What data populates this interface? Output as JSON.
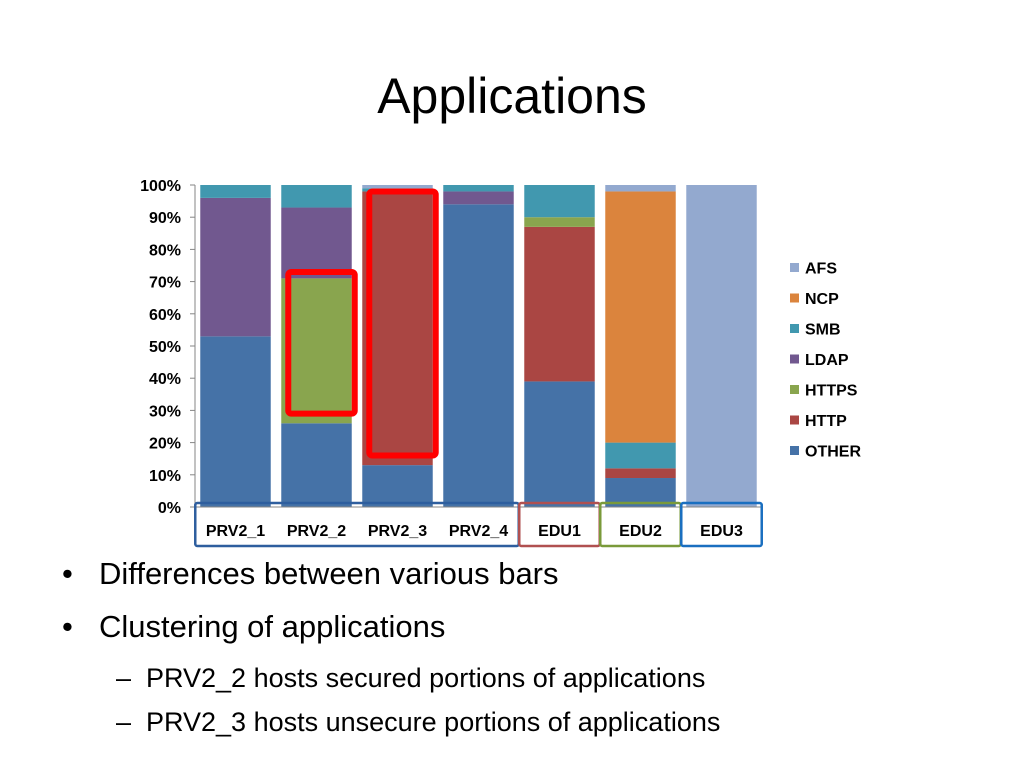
{
  "slide": {
    "title": "Applications"
  },
  "bullets": [
    {
      "text": "Differences between various bars"
    },
    {
      "text": "Clustering of applications"
    }
  ],
  "sub_bullets": [
    {
      "text": "PRV2_2 hosts secured portions of applications"
    },
    {
      "text": "PRV2_3 hosts unsecure portions of applications"
    }
  ],
  "markers": {
    "bullet": "•",
    "dash": "–"
  },
  "chart_data": {
    "type": "bar",
    "stacked": "percent",
    "title": "",
    "xlabel": "",
    "ylabel": "",
    "ylim": [
      0,
      100
    ],
    "y_ticks": [
      "0%",
      "10%",
      "20%",
      "30%",
      "40%",
      "50%",
      "60%",
      "70%",
      "80%",
      "90%",
      "100%"
    ],
    "grid": false,
    "legend": "right",
    "categories": [
      "PRV2_1",
      "PRV2_2",
      "PRV2_3",
      "PRV2_4",
      "EDU1",
      "EDU2",
      "EDU3"
    ],
    "series": [
      {
        "name": "OTHER",
        "color": "#4572a7",
        "values": [
          53,
          26,
          13,
          94,
          39,
          9,
          0
        ]
      },
      {
        "name": "HTTP",
        "color": "#aa4643",
        "values": [
          0,
          0,
          85,
          0,
          48,
          3,
          0
        ]
      },
      {
        "name": "HTTPS",
        "color": "#89a54e",
        "values": [
          0,
          45,
          0,
          0,
          3,
          0,
          0
        ]
      },
      {
        "name": "LDAP",
        "color": "#71588f",
        "values": [
          43,
          22,
          0,
          4,
          0,
          0,
          0
        ]
      },
      {
        "name": "SMB",
        "color": "#4198af",
        "values": [
          4,
          7,
          1,
          2,
          10,
          8,
          0
        ]
      },
      {
        "name": "NCP",
        "color": "#db843d",
        "values": [
          0,
          0,
          0,
          0,
          0,
          78,
          0
        ]
      },
      {
        "name": "AFS",
        "color": "#93a9cf",
        "values": [
          0,
          0,
          1,
          0,
          0,
          2,
          100
        ]
      }
    ],
    "category_groups": [
      {
        "categories": [
          "PRV2_1",
          "PRV2_2",
          "PRV2_3",
          "PRV2_4"
        ],
        "color": "#2e5e9e"
      },
      {
        "categories": [
          "EDU1"
        ],
        "color": "#b05050"
      },
      {
        "categories": [
          "EDU2"
        ],
        "color": "#7a9a3a"
      },
      {
        "categories": [
          "EDU3"
        ],
        "color": "#1a6fc0"
      }
    ],
    "highlights": [
      {
        "category": "PRV2_2",
        "from": 29,
        "to": 73,
        "color": "#ff0000"
      },
      {
        "category": "PRV2_3",
        "from": 16,
        "to": 98,
        "color": "#ff0000"
      }
    ]
  }
}
